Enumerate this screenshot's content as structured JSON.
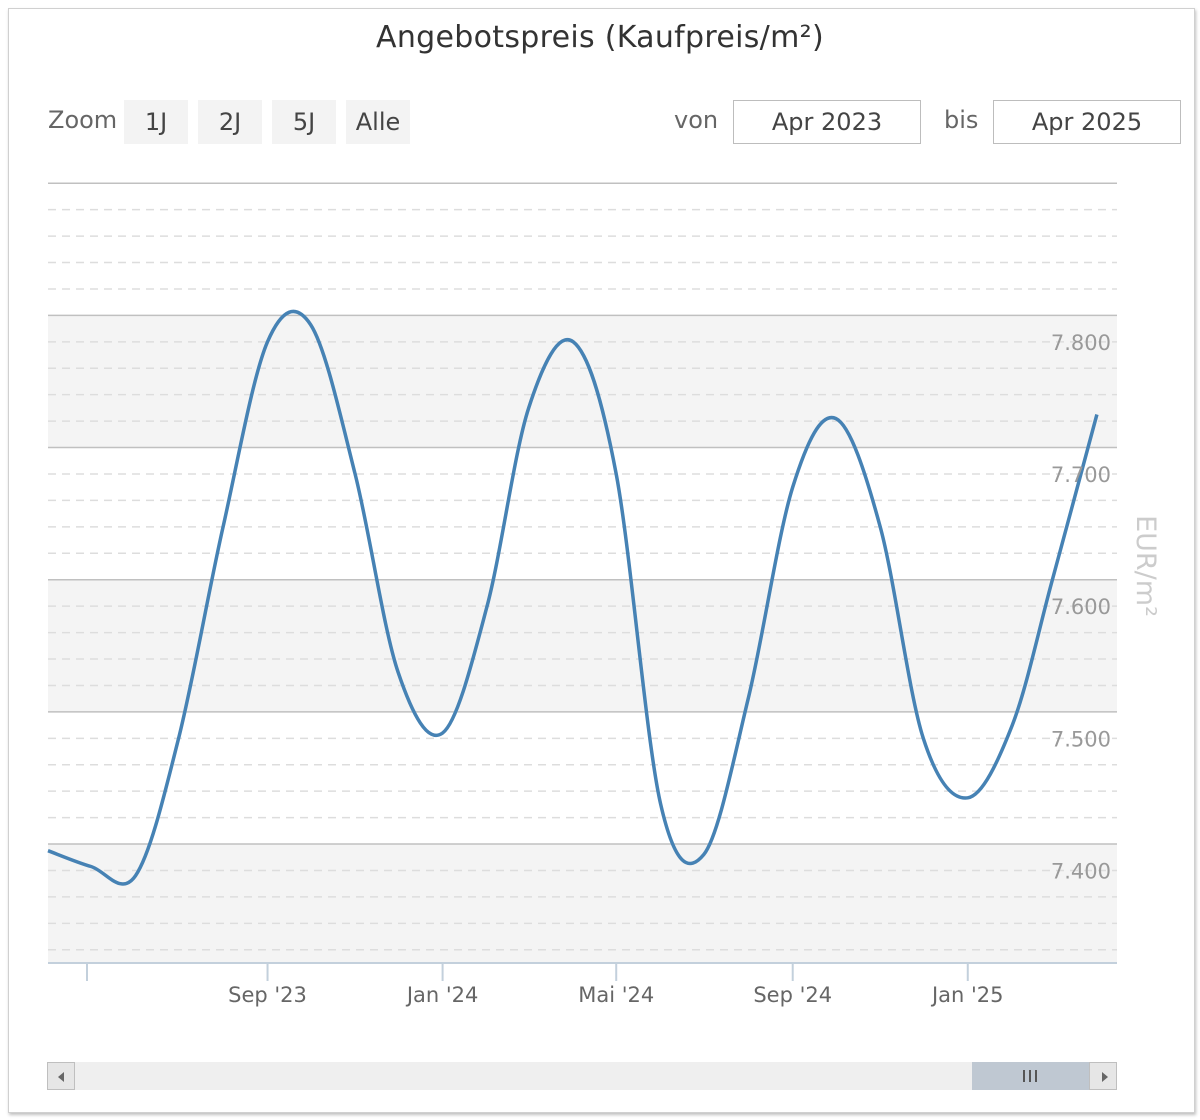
{
  "toolbar": {
    "zoom_label": "Zoom",
    "zoom_buttons": [
      "1J",
      "2J",
      "5J",
      "Alle"
    ],
    "from_label": "von",
    "from_value": "Apr 2023",
    "to_label": "bis",
    "to_value": "Apr 2025"
  },
  "colors": {
    "series": "#4682b4",
    "band": "#f4f4f4",
    "grid": "#c0c0c0",
    "minor_grid": "#dddddd",
    "axis_label": "#999999",
    "axis_title": "#cccccc"
  },
  "navigator": {
    "icons": [
      "scroll-left-arrow-icon",
      "scroll-right-arrow-icon",
      "grip-icon"
    ]
  },
  "chart_data": {
    "type": "line",
    "title": "Angebotspreis (Kaufpreis/m²)",
    "ylabel": "EUR/m²",
    "ylim": [
      7330,
      7930
    ],
    "y_ticks": [
      7400,
      7500,
      7600,
      7700,
      7800
    ],
    "y_tick_labels": [
      "7.400",
      "7.500",
      "7.600",
      "7.700",
      "7.800"
    ],
    "y_bands": [
      [
        7330,
        7420
      ],
      [
        7520,
        7620
      ],
      [
        7720,
        7820
      ]
    ],
    "xlim": [
      "2023-04-01",
      "2025-04-15"
    ],
    "x_ticks": [
      "2023-09-01",
      "2024-01-01",
      "2024-05-01",
      "2024-09-01",
      "2025-01-01"
    ],
    "x_tick_labels": [
      "Sep '23",
      "Jan '24",
      "Mai '24",
      "Sep '24",
      "Jan '25"
    ],
    "series": [
      {
        "x": [
          "2023-04-01",
          "2023-05-01",
          "2023-06-01",
          "2023-07-01",
          "2023-08-01",
          "2023-09-01",
          "2023-10-01",
          "2023-11-01",
          "2023-12-01",
          "2024-01-01",
          "2024-02-01",
          "2024-03-01",
          "2024-04-01",
          "2024-05-01",
          "2024-06-01",
          "2024-07-01",
          "2024-08-01",
          "2024-09-01",
          "2024-10-01",
          "2024-11-01",
          "2024-12-01",
          "2025-01-01",
          "2025-02-01",
          "2025-03-01",
          "2025-04-01"
        ],
        "y": [
          7415,
          7403,
          7396,
          7500,
          7660,
          7800,
          7813,
          7700,
          7550,
          7504,
          7600,
          7750,
          7800,
          7700,
          7450,
          7412,
          7530,
          7690,
          7742,
          7660,
          7500,
          7455,
          7510,
          7620,
          7745
        ]
      }
    ]
  }
}
